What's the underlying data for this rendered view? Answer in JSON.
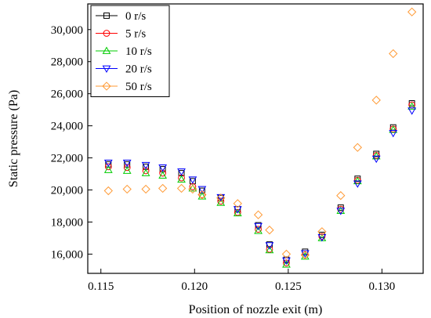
{
  "chart_data": {
    "type": "scatter",
    "title": "",
    "xlabel": "Position of nozzle exit (m)",
    "ylabel": "Static pressure (Pa)",
    "xlim": [
      0.1143,
      0.1322
    ],
    "ylim": [
      14800,
      31600
    ],
    "x_ticks": [
      0.115,
      0.12,
      0.125,
      0.13
    ],
    "x_tick_labels": [
      "0.115",
      "0.120",
      "0.125",
      "0.130"
    ],
    "y_ticks": [
      16000,
      18000,
      20000,
      22000,
      24000,
      26000,
      28000,
      30000
    ],
    "y_tick_labels": [
      "16,000",
      "18,000",
      "20,000",
      "22,000",
      "24,000",
      "26,000",
      "28,000",
      "30,000"
    ],
    "grid": false,
    "legend_position": "top-left",
    "x": [
      0.1154,
      0.1164,
      0.1174,
      0.1183,
      0.1193,
      0.1199,
      0.1204,
      0.1214,
      0.1223,
      0.1234,
      0.124,
      0.1249,
      0.1259,
      0.1268,
      0.1278,
      0.1287,
      0.1297,
      0.1306,
      0.1316
    ],
    "series": [
      {
        "name": "0 r/s",
        "color": "#000000",
        "marker": "square",
        "values": [
          21600,
          21600,
          21450,
          21300,
          21050,
          20550,
          19950,
          19500,
          18800,
          17800,
          16600,
          15650,
          16150,
          17200,
          18900,
          20700,
          22250,
          23900,
          25400
        ]
      },
      {
        "name": "5 r/s",
        "color": "#ff0000",
        "marker": "circle",
        "values": [
          21450,
          21400,
          21200,
          21050,
          20750,
          20200,
          19700,
          19300,
          18600,
          17550,
          16300,
          15450,
          15950,
          17100,
          18800,
          20600,
          22150,
          23800,
          25300
        ]
      },
      {
        "name": "10 r/s",
        "color": "#00cc00",
        "marker": "triangle-up",
        "values": [
          21250,
          21200,
          21050,
          20900,
          20650,
          20100,
          19600,
          19200,
          18550,
          17450,
          16250,
          15350,
          15850,
          17000,
          18700,
          20550,
          22100,
          23750,
          25200
        ]
      },
      {
        "name": "20 r/s",
        "color": "#0000ff",
        "marker": "triangle-down",
        "values": [
          21700,
          21700,
          21550,
          21400,
          21150,
          20650,
          20050,
          19550,
          18800,
          17750,
          16550,
          15600,
          16050,
          17050,
          18700,
          20400,
          21950,
          23550,
          24950
        ]
      },
      {
        "name": "50 r/s",
        "color": "#ff9933",
        "marker": "diamond",
        "values": [
          19950,
          20050,
          20050,
          20100,
          20100,
          20050,
          19700,
          19500,
          19150,
          18450,
          17500,
          16000,
          15950,
          17400,
          19650,
          22650,
          25600,
          28500,
          31100
        ]
      }
    ]
  }
}
